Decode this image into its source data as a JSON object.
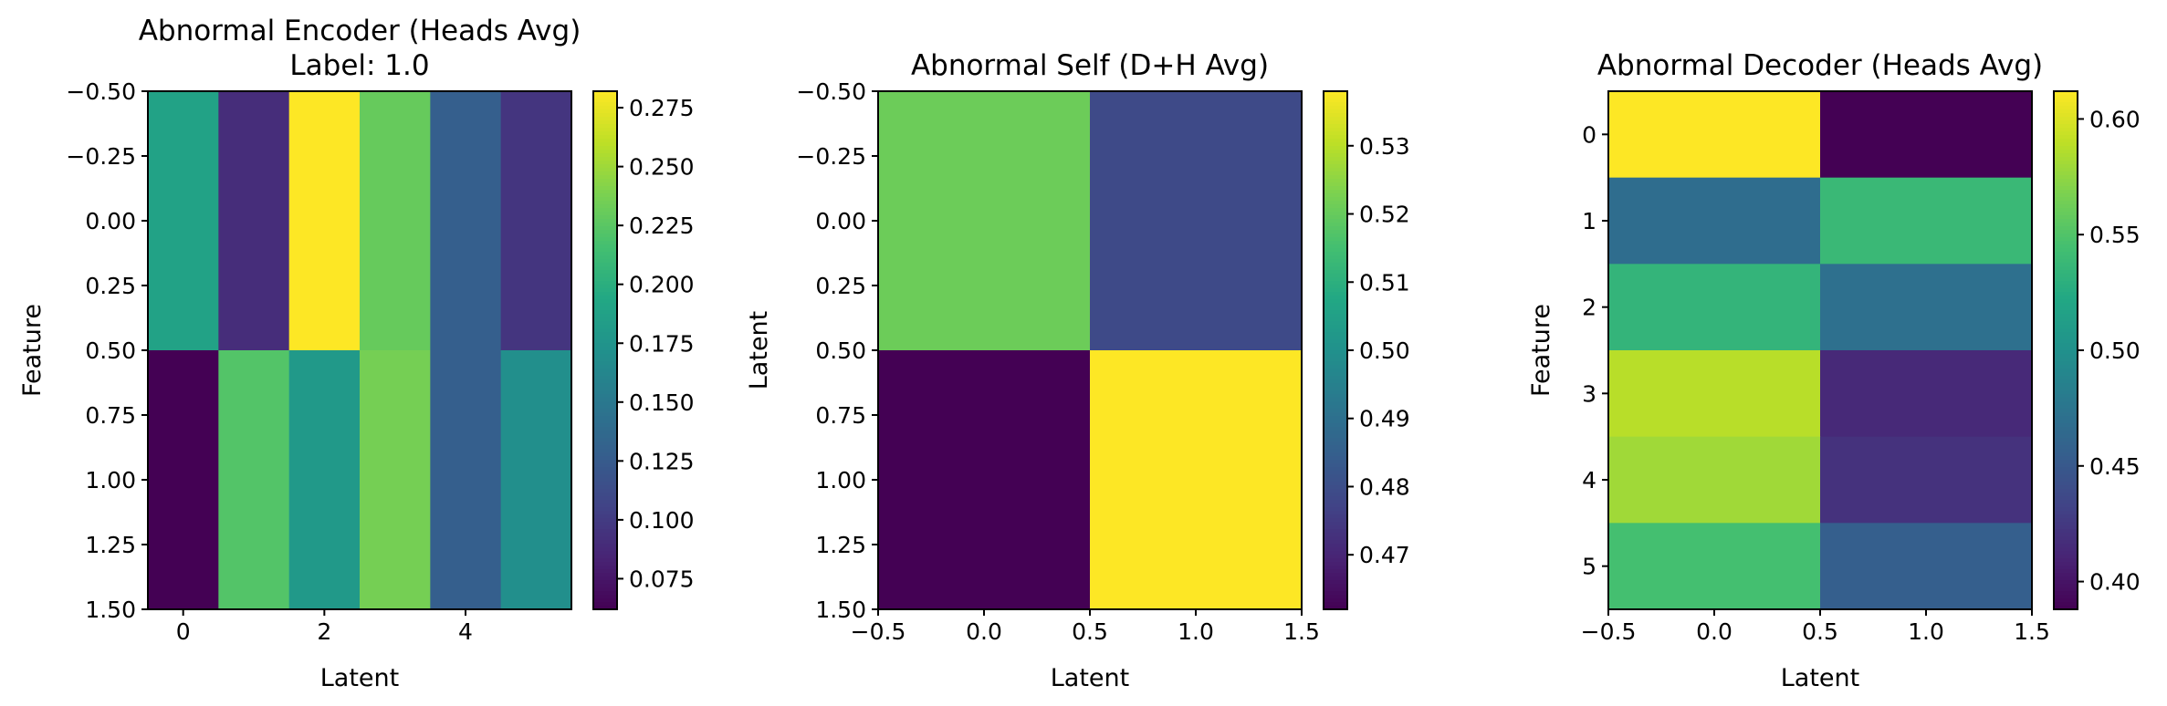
{
  "chart_data": [
    {
      "type": "heatmap",
      "title": "Abnormal Encoder (Heads Avg)",
      "subtitle": "Label: 1.0",
      "xlabel": "Latent",
      "ylabel": "Feature",
      "xlim": [
        -0.5,
        5.5
      ],
      "ylim": [
        1.5,
        -0.5
      ],
      "xticks": [
        0,
        2,
        4
      ],
      "xtick_labels": [
        "0",
        "2",
        "4"
      ],
      "yticks": [
        -0.5,
        -0.25,
        0.0,
        0.25,
        0.5,
        0.75,
        1.0,
        1.25,
        1.5
      ],
      "ytick_labels": [
        "−0.50",
        "−0.25",
        "0.00",
        "0.25",
        "0.50",
        "0.75",
        "1.00",
        "1.25",
        "1.50"
      ],
      "cell_rows": [
        0,
        1
      ],
      "cell_cols": [
        0,
        1,
        2,
        3,
        4,
        5
      ],
      "values": [
        [
          0.188,
          0.09,
          0.282,
          0.23,
          0.128,
          0.096
        ],
        [
          0.062,
          0.222,
          0.18,
          0.236,
          0.128,
          0.17
        ]
      ],
      "vmin": 0.062,
      "vmax": 0.282,
      "colormap": "viridis",
      "colorbar_ticks": [
        0.075,
        0.1,
        0.125,
        0.15,
        0.175,
        0.2,
        0.225,
        0.25,
        0.275
      ],
      "colorbar_labels": [
        "0.075",
        "0.100",
        "0.125",
        "0.150",
        "0.175",
        "0.200",
        "0.225",
        "0.250",
        "0.275"
      ]
    },
    {
      "type": "heatmap",
      "title": "Abnormal Self (D+H Avg)",
      "xlabel": "Latent",
      "ylabel": "Latent",
      "xlim": [
        -0.5,
        1.5
      ],
      "ylim": [
        1.5,
        -0.5
      ],
      "xticks": [
        -0.5,
        0.0,
        0.5,
        1.0,
        1.5
      ],
      "xtick_labels": [
        "−0.5",
        "0.0",
        "0.5",
        "1.0",
        "1.5"
      ],
      "yticks": [
        -0.5,
        -0.25,
        0.0,
        0.25,
        0.5,
        0.75,
        1.0,
        1.25,
        1.5
      ],
      "ytick_labels": [
        "−0.50",
        "−0.25",
        "0.00",
        "0.25",
        "0.50",
        "0.75",
        "1.00",
        "1.25",
        "1.50"
      ],
      "cell_rows": [
        0,
        1
      ],
      "cell_cols": [
        0,
        1
      ],
      "values": [
        [
          0.5208,
          0.479
        ],
        [
          0.462,
          0.538
        ]
      ],
      "vmin": 0.462,
      "vmax": 0.538,
      "colormap": "viridis",
      "colorbar_ticks": [
        0.47,
        0.48,
        0.49,
        0.5,
        0.51,
        0.52,
        0.53
      ],
      "colorbar_labels": [
        "0.47",
        "0.48",
        "0.49",
        "0.50",
        "0.51",
        "0.52",
        "0.53"
      ]
    },
    {
      "type": "heatmap",
      "title": "Abnormal Decoder (Heads Avg)",
      "xlabel": "Latent",
      "ylabel": "Feature",
      "xlim": [
        -0.5,
        1.5
      ],
      "ylim": [
        5.5,
        -0.5
      ],
      "xticks": [
        -0.5,
        0.0,
        0.5,
        1.0,
        1.5
      ],
      "xtick_labels": [
        "−0.5",
        "0.0",
        "0.5",
        "1.0",
        "1.5"
      ],
      "yticks": [
        0,
        1,
        2,
        3,
        4,
        5
      ],
      "ytick_labels": [
        "0",
        "1",
        "2",
        "3",
        "4",
        "5"
      ],
      "cell_rows": [
        0,
        1,
        2,
        3,
        4,
        5
      ],
      "cell_cols": [
        0,
        1
      ],
      "values": [
        [
          0.612,
          0.388
        ],
        [
          0.468,
          0.538
        ],
        [
          0.534,
          0.47
        ],
        [
          0.588,
          0.414
        ],
        [
          0.58,
          0.42
        ],
        [
          0.545,
          0.455
        ]
      ],
      "vmin": 0.388,
      "vmax": 0.612,
      "colormap": "viridis",
      "colorbar_ticks": [
        0.4,
        0.45,
        0.5,
        0.55,
        0.6
      ],
      "colorbar_labels": [
        "0.40",
        "0.45",
        "0.50",
        "0.55",
        "0.60"
      ]
    }
  ]
}
